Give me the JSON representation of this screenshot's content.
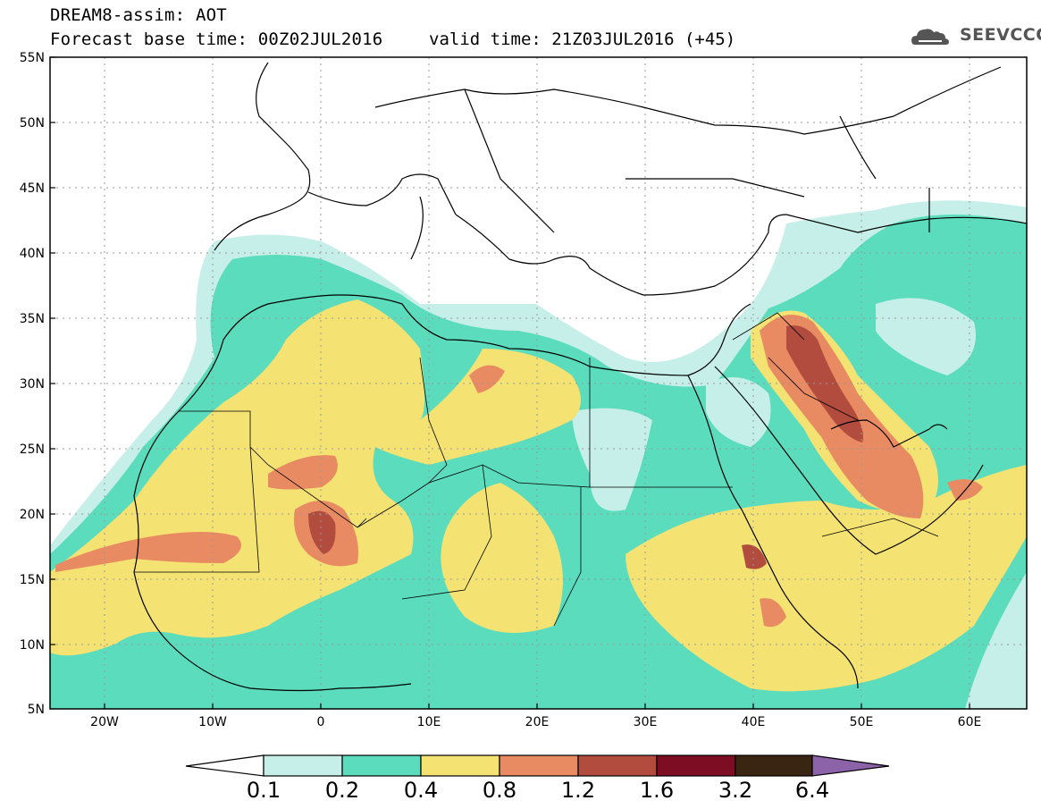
{
  "header": {
    "title": "DREAM8-assim: AOT",
    "base_time": "Forecast base time: 00Z02JUL2016",
    "valid_time": "valid time: 21Z03JUL2016 (+45)",
    "logo_text": "SEEVCCC"
  },
  "map_axes": {
    "lat_ticks": [
      "55N",
      "50N",
      "45N",
      "40N",
      "35N",
      "30N",
      "25N",
      "20N",
      "15N",
      "10N",
      "5N"
    ],
    "lon_ticks": [
      "20W",
      "10W",
      "0",
      "10E",
      "20E",
      "30E",
      "40E",
      "50E",
      "60E"
    ],
    "lon_range": [
      -25,
      65
    ],
    "lat_range": [
      5,
      55
    ]
  },
  "colorbar": {
    "labels": [
      "0.1",
      "0.2",
      "0.4",
      "0.8",
      "1.2",
      "1.6",
      "3.2",
      "6.4"
    ],
    "colors": {
      "below": "#ffffff",
      "c1": "#c6efe9",
      "c2": "#5adcbd",
      "c3": "#f4e273",
      "c4": "#e88a62",
      "c5": "#b24c3e",
      "c6": "#7d0d22",
      "c7": "#3a2412",
      "above": "#8c62a8"
    }
  }
}
